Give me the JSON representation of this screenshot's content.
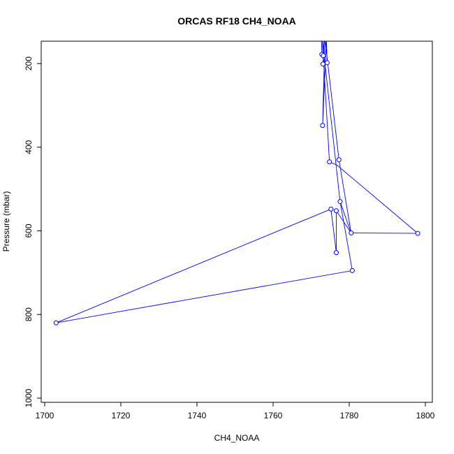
{
  "chart_data": {
    "type": "line",
    "title": "ORCAS RF18 CH4_NOAA",
    "xlabel": "CH4_NOAA",
    "ylabel": "Pressure (mbar)",
    "xlim": [
      1700,
      1800
    ],
    "ylim": [
      1000,
      150
    ],
    "y_reversed": true,
    "xticks": [
      "1700",
      "1720",
      "1740",
      "1760",
      "1780",
      "1800"
    ],
    "yticks": [
      "200",
      "400",
      "600",
      "800",
      "1000"
    ],
    "grid": false,
    "legend": "none",
    "series": [
      {
        "color": "#0000ff",
        "marker": "open-circle",
        "x": [
          1772.8,
          1773.2,
          1772.9,
          1773.1,
          1773.0,
          1773.2,
          1774.2,
          1773.0,
          1774.8,
          1775.2,
          1778.0,
          1777.3,
          1776.6,
          1780.5,
          1777.1,
          1703.0,
          1780.8,
          1778.2,
          1776.9,
          1775.5,
          1775.0,
          1774.3,
          1773.4,
          1773.0,
          1773.3,
          1773.1,
          1772.9
        ],
        "y": [
          178,
          180,
          170,
          182,
          180,
          200,
          198,
          348,
          435,
          548,
          530,
          430,
          552,
          605,
          620,
          820,
          695,
          580,
          652,
          560,
          430,
          200,
          150,
          140,
          130,
          150,
          160
        ]
      }
    ],
    "points": [
      {
        "x": 1772.8,
        "y": 178
      },
      {
        "x": 1773.2,
        "y": 181
      },
      {
        "x": 1773.1,
        "y": 201
      },
      {
        "x": 1774.2,
        "y": 198
      },
      {
        "x": 1773.0,
        "y": 348
      },
      {
        "x": 1774.8,
        "y": 435
      },
      {
        "x": 1777.3,
        "y": 430
      },
      {
        "x": 1775.2,
        "y": 548
      },
      {
        "x": 1776.6,
        "y": 552
      },
      {
        "x": 1777.6,
        "y": 530
      },
      {
        "x": 1780.5,
        "y": 605
      },
      {
        "x": 1798.0,
        "y": 606
      },
      {
        "x": 1776.6,
        "y": 652
      },
      {
        "x": 1780.8,
        "y": 695
      },
      {
        "x": 1703.0,
        "y": 820
      }
    ],
    "path": [
      {
        "x": 1772.7,
        "y": 140
      },
      {
        "x": 1772.8,
        "y": 178
      },
      {
        "x": 1773.2,
        "y": 181
      },
      {
        "x": 1773.4,
        "y": 140
      },
      {
        "x": 1773.1,
        "y": 201
      },
      {
        "x": 1774.2,
        "y": 198
      },
      {
        "x": 1774.0,
        "y": 140
      },
      {
        "x": 1773.0,
        "y": 348
      },
      {
        "x": 1773.6,
        "y": 140
      },
      {
        "x": 1777.3,
        "y": 430
      },
      {
        "x": 1780.5,
        "y": 605
      },
      {
        "x": 1798.0,
        "y": 606
      },
      {
        "x": 1776.8,
        "y": 443
      },
      {
        "x": 1774.8,
        "y": 435
      },
      {
        "x": 1772.9,
        "y": 140
      },
      {
        "x": 1777.6,
        "y": 530
      },
      {
        "x": 1780.5,
        "y": 605
      },
      {
        "x": 1776.6,
        "y": 552
      },
      {
        "x": 1776.6,
        "y": 652
      },
      {
        "x": 1775.2,
        "y": 548
      },
      {
        "x": 1703.0,
        "y": 820
      },
      {
        "x": 1780.8,
        "y": 695
      },
      {
        "x": 1777.6,
        "y": 530
      }
    ]
  }
}
